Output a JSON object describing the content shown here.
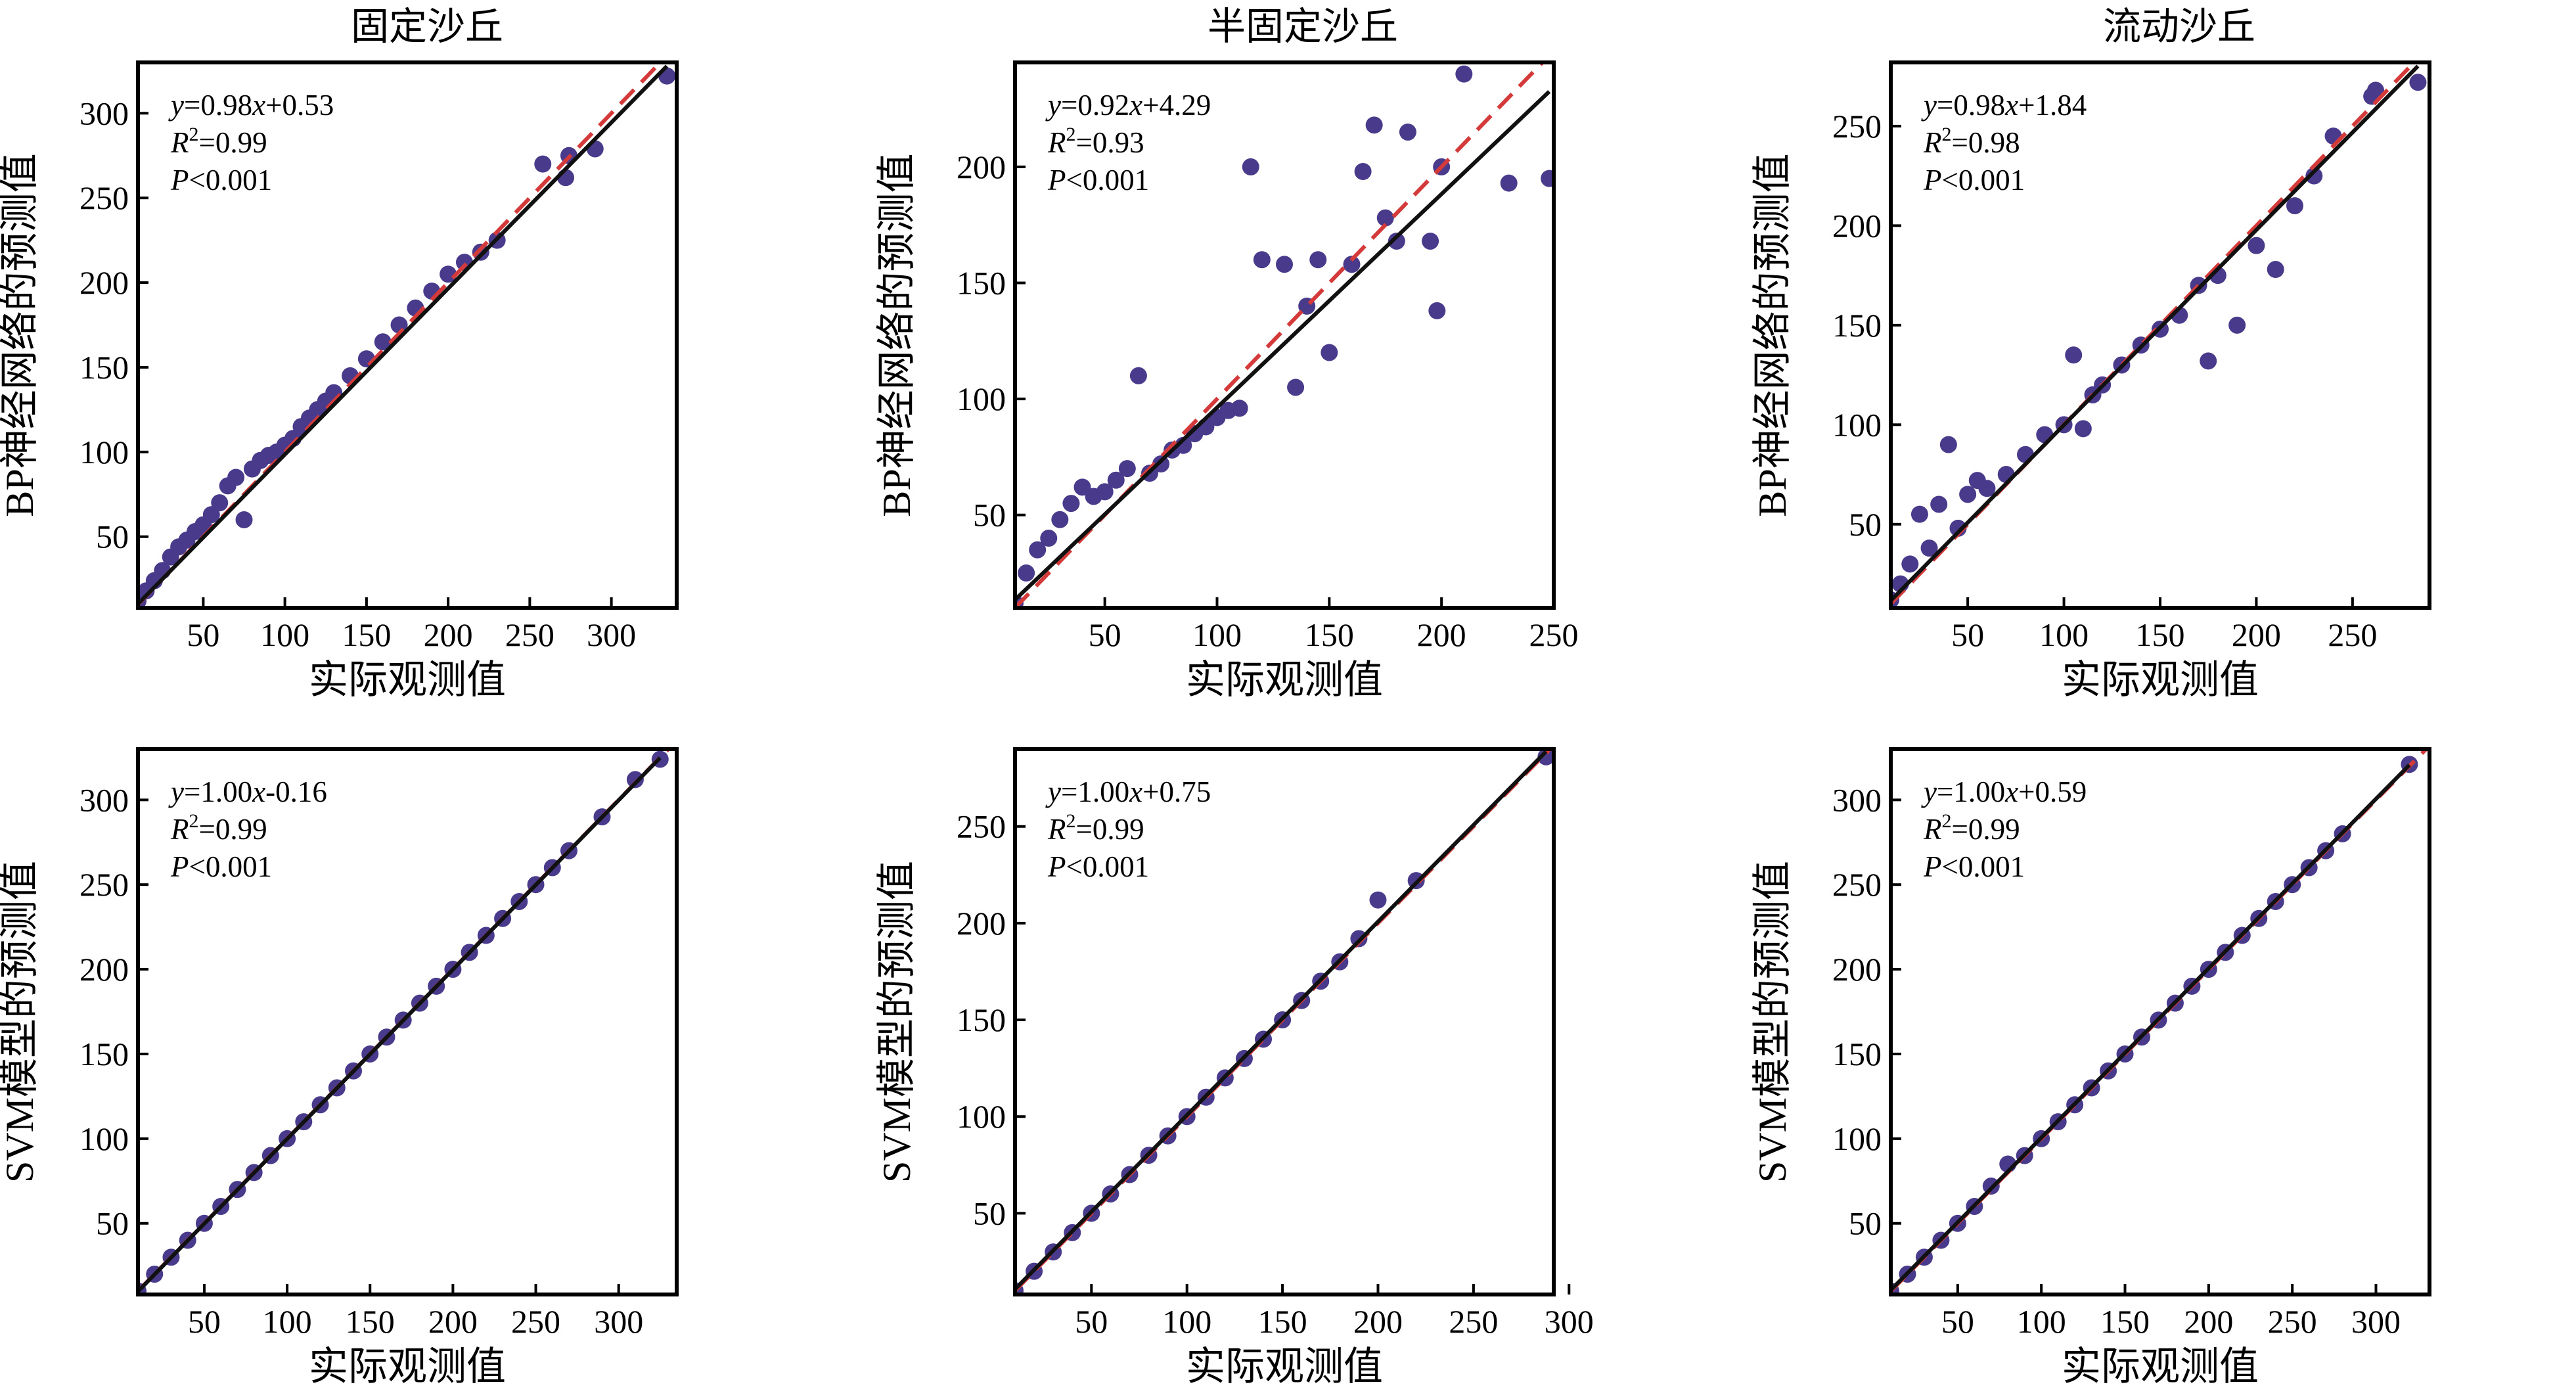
{
  "figure": {
    "column_titles": [
      "固定沙丘",
      "半固定沙丘",
      "流动沙丘"
    ],
    "xlabel": "实际观测值",
    "row_ylabels": [
      "BP神经网络的预测值",
      "SVM模型的预测值"
    ]
  },
  "style": {
    "point_color": "#4a3a8c",
    "fit_line_color": "#111111",
    "reference_line_color": "#d43a3a",
    "frame_color": "#000000"
  },
  "chart_data": [
    {
      "type": "scatter",
      "row": 0,
      "col": 0,
      "title": "固定沙丘",
      "xlabel": "实际观测值",
      "ylabel": "BP神经网络的预测值",
      "xlim": [
        10,
        340
      ],
      "ylim": [
        8,
        330
      ],
      "xticks": [
        50,
        100,
        150,
        200,
        250,
        300
      ],
      "yticks": [
        50,
        100,
        150,
        200,
        250,
        300
      ],
      "annotation": {
        "equation": "y=0.98x+0.53",
        "r2": "R2=0.99",
        "p": "P<0.001"
      },
      "fit": {
        "slope": 0.98,
        "intercept": 0.53
      },
      "reference_line": "1:1",
      "series": [
        {
          "x": [
            10,
            15,
            20,
            25,
            30,
            35,
            40,
            45,
            50,
            55,
            60,
            65,
            70,
            75,
            80,
            85,
            90,
            95,
            100,
            105,
            110,
            115,
            120,
            125,
            130,
            140,
            150,
            160,
            170,
            180,
            190,
            200,
            210,
            220,
            230,
            258,
            272,
            274,
            290,
            334
          ],
          "y": [
            12,
            18,
            24,
            30,
            38,
            44,
            48,
            53,
            57,
            63,
            70,
            80,
            85,
            60,
            90,
            95,
            98,
            100,
            104,
            108,
            115,
            120,
            125,
            130,
            135,
            145,
            155,
            165,
            175,
            185,
            195,
            205,
            212,
            218,
            225,
            270,
            262,
            275,
            279,
            322
          ]
        }
      ]
    },
    {
      "type": "scatter",
      "row": 0,
      "col": 1,
      "title": "半固定沙丘",
      "xlabel": "实际观测值",
      "ylabel": "BP神经网络的预测值",
      "xlim": [
        10,
        250
      ],
      "ylim": [
        10,
        245
      ],
      "xticks": [
        50,
        100,
        150,
        200,
        250
      ],
      "yticks": [
        50,
        100,
        150,
        200
      ],
      "annotation": {
        "equation": "y=0.92x+4.29",
        "r2": "R2=0.93",
        "p": "P<0.001"
      },
      "fit": {
        "slope": 0.92,
        "intercept": 4.29
      },
      "reference_line": "1:1",
      "series": [
        {
          "x": [
            10,
            15,
            20,
            25,
            30,
            35,
            40,
            45,
            50,
            55,
            60,
            65,
            70,
            75,
            80,
            85,
            90,
            95,
            100,
            105,
            110,
            115,
            120,
            130,
            135,
            140,
            145,
            150,
            160,
            165,
            170,
            175,
            180,
            185,
            195,
            198,
            200,
            210,
            230,
            248
          ],
          "y": [
            12,
            25,
            35,
            40,
            48,
            55,
            62,
            58,
            60,
            65,
            70,
            110,
            68,
            72,
            78,
            80,
            85,
            88,
            92,
            95,
            96,
            200,
            160,
            158,
            105,
            140,
            160,
            120,
            158,
            198,
            218,
            178,
            168,
            215,
            168,
            138,
            200,
            240,
            193,
            195
          ]
        }
      ]
    },
    {
      "type": "scatter",
      "row": 0,
      "col": 2,
      "title": "流动沙丘",
      "xlabel": "实际观测值",
      "ylabel": "BP神经网络的预测值",
      "xlim": [
        10,
        290
      ],
      "ylim": [
        8,
        282
      ],
      "xticks": [
        50,
        100,
        150,
        200,
        250
      ],
      "yticks": [
        50,
        100,
        150,
        200,
        250
      ],
      "annotation": {
        "equation": "y=0.98x+1.84",
        "r2": "R2=0.98",
        "p": "P<0.001"
      },
      "fit": {
        "slope": 0.98,
        "intercept": 1.84
      },
      "reference_line": "1:1",
      "series": [
        {
          "x": [
            10,
            15,
            20,
            25,
            30,
            35,
            40,
            45,
            50,
            55,
            60,
            70,
            80,
            90,
            100,
            105,
            110,
            115,
            120,
            130,
            140,
            150,
            160,
            170,
            175,
            180,
            190,
            200,
            210,
            220,
            230,
            240,
            260,
            262,
            284
          ],
          "y": [
            12,
            20,
            30,
            55,
            38,
            60,
            90,
            48,
            65,
            72,
            68,
            75,
            85,
            95,
            100,
            135,
            98,
            115,
            120,
            130,
            140,
            148,
            155,
            170,
            132,
            175,
            150,
            190,
            178,
            210,
            225,
            245,
            265,
            268,
            272
          ]
        }
      ]
    },
    {
      "type": "scatter",
      "row": 1,
      "col": 0,
      "title": "",
      "xlabel": "实际观测值",
      "ylabel": "SVM模型的预测值",
      "xlim": [
        10,
        335
      ],
      "ylim": [
        8,
        330
      ],
      "xticks": [
        50,
        100,
        150,
        200,
        250,
        300
      ],
      "yticks": [
        50,
        100,
        150,
        200,
        250,
        300
      ],
      "annotation": {
        "equation": "y=1.00x-0.16",
        "r2": "R2=0.99",
        "p": "P<0.001"
      },
      "fit": {
        "slope": 1.0,
        "intercept": -0.16
      },
      "reference_line": "1:1",
      "series": [
        {
          "x": [
            10,
            20,
            30,
            40,
            50,
            60,
            70,
            80,
            90,
            100,
            110,
            120,
            130,
            140,
            150,
            160,
            170,
            180,
            190,
            200,
            210,
            220,
            230,
            240,
            250,
            260,
            270,
            290,
            310,
            325
          ],
          "y": [
            10,
            20,
            30,
            40,
            50,
            60,
            70,
            80,
            90,
            100,
            110,
            120,
            130,
            140,
            150,
            160,
            170,
            180,
            190,
            200,
            210,
            220,
            230,
            240,
            250,
            260,
            270,
            290,
            312,
            324
          ]
        }
      ]
    },
    {
      "type": "scatter",
      "row": 1,
      "col": 1,
      "title": "",
      "xlabel": "实际观测值",
      "ylabel": "SVM模型的预测值",
      "xlim": [
        10,
        292
      ],
      "ylim": [
        8,
        290
      ],
      "xticks": [
        50,
        100,
        150,
        200,
        250,
        300
      ],
      "yticks": [
        50,
        100,
        150,
        200,
        250
      ],
      "annotation": {
        "equation": "y=1.00x+0.75",
        "r2": "R2=0.99",
        "p": "P<0.001"
      },
      "fit": {
        "slope": 1.0,
        "intercept": 0.75
      },
      "reference_line": "1:1",
      "series": [
        {
          "x": [
            10,
            20,
            30,
            40,
            50,
            60,
            70,
            80,
            90,
            100,
            110,
            120,
            130,
            140,
            150,
            160,
            170,
            180,
            190,
            200,
            220,
            288
          ],
          "y": [
            10,
            20,
            30,
            40,
            50,
            60,
            70,
            80,
            90,
            100,
            110,
            120,
            130,
            140,
            150,
            160,
            170,
            180,
            192,
            212,
            222,
            286
          ]
        }
      ]
    },
    {
      "type": "scatter",
      "row": 1,
      "col": 2,
      "title": "",
      "xlabel": "实际观测值",
      "ylabel": "SVM模型的预测值",
      "xlim": [
        10,
        332
      ],
      "ylim": [
        8,
        330
      ],
      "xticks": [
        50,
        100,
        150,
        200,
        250,
        300
      ],
      "yticks": [
        50,
        100,
        150,
        200,
        250,
        300
      ],
      "annotation": {
        "equation": "y=1.00x+0.59",
        "r2": "R2=0.99",
        "p": "P<0.001"
      },
      "fit": {
        "slope": 1.0,
        "intercept": 0.59
      },
      "reference_line": "1:1",
      "series": [
        {
          "x": [
            10,
            20,
            30,
            40,
            50,
            60,
            70,
            80,
            90,
            100,
            110,
            120,
            130,
            140,
            150,
            160,
            170,
            180,
            190,
            200,
            210,
            220,
            230,
            240,
            250,
            260,
            270,
            280,
            320
          ],
          "y": [
            10,
            20,
            30,
            40,
            50,
            60,
            72,
            85,
            90,
            100,
            110,
            120,
            130,
            140,
            150,
            160,
            170,
            180,
            190,
            200,
            210,
            220,
            230,
            240,
            250,
            260,
            270,
            280,
            321
          ]
        }
      ]
    }
  ]
}
